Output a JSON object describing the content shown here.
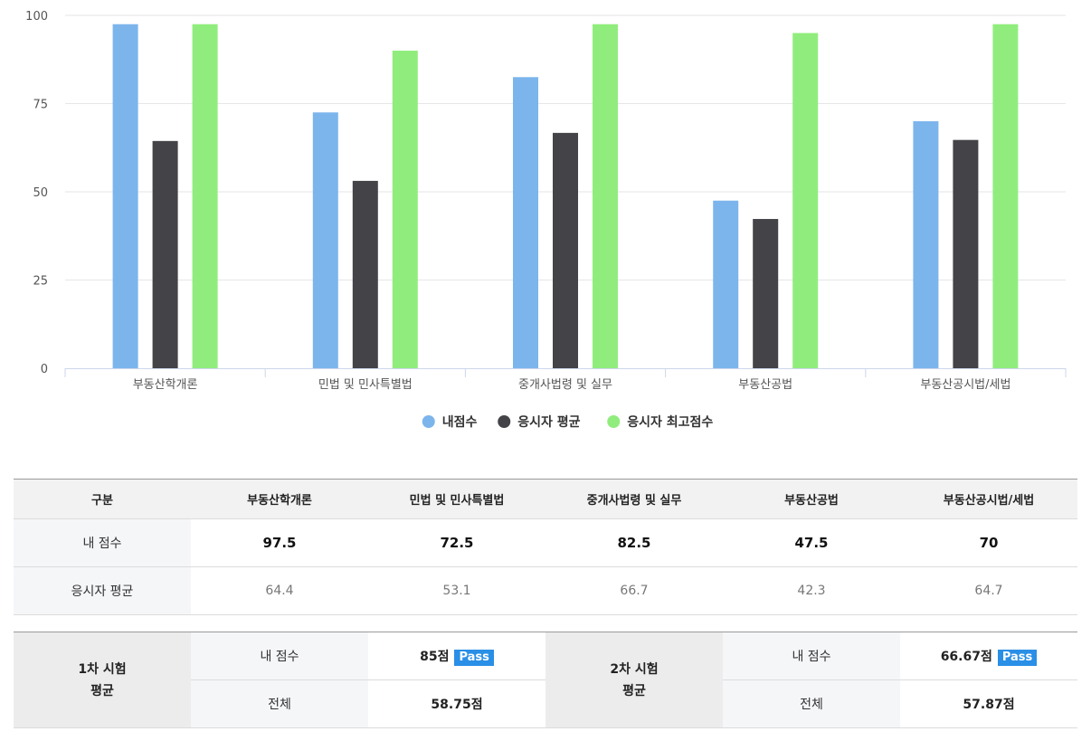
{
  "chart_data": {
    "type": "bar",
    "categories": [
      "부동산학개론",
      "민법 및 민사특별법",
      "중개사법령 및 실무",
      "부동산공법",
      "부동산공시법/세법"
    ],
    "series": [
      {
        "name": "내점수",
        "color": "#7cb5ec",
        "values": [
          97.5,
          72.5,
          82.5,
          47.5,
          70
        ]
      },
      {
        "name": "응시자 평균",
        "color": "#434348",
        "values": [
          64.4,
          53.1,
          66.7,
          42.3,
          64.7
        ]
      },
      {
        "name": "응시자 최고점수",
        "color": "#90ed7d",
        "values": [
          97.5,
          90,
          97.5,
          95,
          97.5
        ]
      }
    ],
    "ylim": [
      0,
      100
    ],
    "yticks": [
      0,
      25,
      50,
      75,
      100
    ],
    "grid": true,
    "legend": "bottom-center"
  },
  "score_table": {
    "headers": [
      "구분",
      "부동산학개론",
      "민법 및 민사특별법",
      "중개사법령 및 실무",
      "부동산공법",
      "부동산공시법/세법"
    ],
    "my_score": {
      "label": "내 점수",
      "values": [
        "97.5",
        "72.5",
        "82.5",
        "47.5",
        "70"
      ]
    },
    "average": {
      "label": "응시자 평균",
      "values": [
        "64.4",
        "53.1",
        "66.7",
        "42.3",
        "64.7"
      ]
    }
  },
  "exams": [
    {
      "title_line1": "1차 시험",
      "title_line2": "평균",
      "mine_label": "내 점수",
      "mine_value": "85점",
      "badge": "Pass",
      "total_label": "전체",
      "total_value": "58.75점"
    },
    {
      "title_line1": "2차 시험",
      "title_line2": "평균",
      "mine_label": "내 점수",
      "mine_value": "66.67점",
      "badge": "Pass",
      "total_label": "전체",
      "total_value": "57.87점"
    }
  ]
}
